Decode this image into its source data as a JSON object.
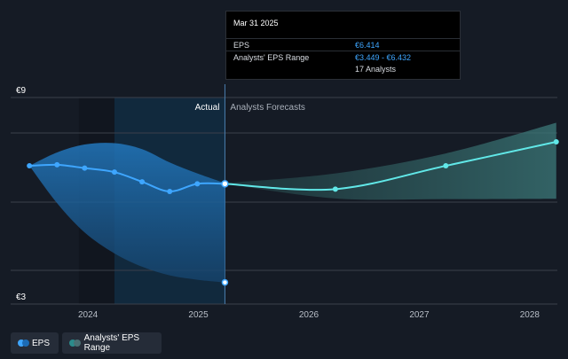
{
  "chart_data": {
    "type": "line",
    "xlim": [
      2023.3,
      2028.25
    ],
    "ylim": [
      2.8,
      9.0
    ],
    "y_tick_labels": [
      "€9",
      "€3"
    ],
    "x_tick_labels": [
      "2024",
      "2025",
      "2026",
      "2027",
      "2028"
    ],
    "x_ticks": [
      2024,
      2025,
      2026,
      2027,
      2028
    ],
    "divider_x": 2025.24,
    "region_labels": {
      "actual": "Actual",
      "forecast": "Analysts Forecasts"
    },
    "series": [
      {
        "name": "EPS",
        "color": "#3ea6ff",
        "actual_points": [
          [
            2023.47,
            6.95
          ],
          [
            2023.72,
            6.98
          ],
          [
            2023.97,
            6.88
          ],
          [
            2024.24,
            6.76
          ],
          [
            2024.49,
            6.47
          ],
          [
            2024.74,
            6.18
          ],
          [
            2024.99,
            6.41
          ],
          [
            2025.24,
            6.41
          ]
        ],
        "forecast_points": [
          [
            2025.24,
            6.41
          ],
          [
            2026.24,
            6.25
          ],
          [
            2027.24,
            6.95
          ],
          [
            2028.24,
            7.67
          ]
        ]
      }
    ],
    "eps_range": {
      "name": "Analysts' EPS Range",
      "actual_band": {
        "x": [
          2023.47,
          2023.72,
          2023.97,
          2024.24,
          2024.49,
          2024.74,
          2024.99,
          2025.24
        ],
        "high": [
          6.95,
          7.35,
          7.59,
          7.63,
          7.45,
          7.05,
          6.72,
          6.43
        ],
        "low": [
          6.95,
          5.83,
          4.95,
          4.32,
          3.92,
          3.66,
          3.53,
          3.45
        ]
      },
      "forecast_band": {
        "x": [
          2025.24,
          2026.24,
          2027.24,
          2028.24
        ],
        "high": [
          6.43,
          6.72,
          7.32,
          8.24
        ],
        "low": [
          6.41,
          5.97,
          5.95,
          5.96
        ]
      }
    },
    "colors": {
      "eps": "#3ea6ff",
      "forecast_line": "#61e8e8",
      "forecast_band": "#2f5f5f",
      "actual_band": "#1e5f93",
      "highlight": "#0f3452"
    }
  },
  "tooltip": {
    "date": "Mar 31 2025",
    "eps_label": "EPS",
    "eps_value": "€6.414",
    "range_label": "Analysts' EPS Range",
    "range_value": "€3.449 - €6.432",
    "analysts": "17 Analysts"
  },
  "legend": [
    {
      "label": "EPS",
      "color_a": "#3ea6ff",
      "color_b": "#1c6bb5"
    },
    {
      "label": "Analysts' EPS Range",
      "color_a": "#2b8b8b",
      "color_b": "#4a6f73"
    }
  ]
}
